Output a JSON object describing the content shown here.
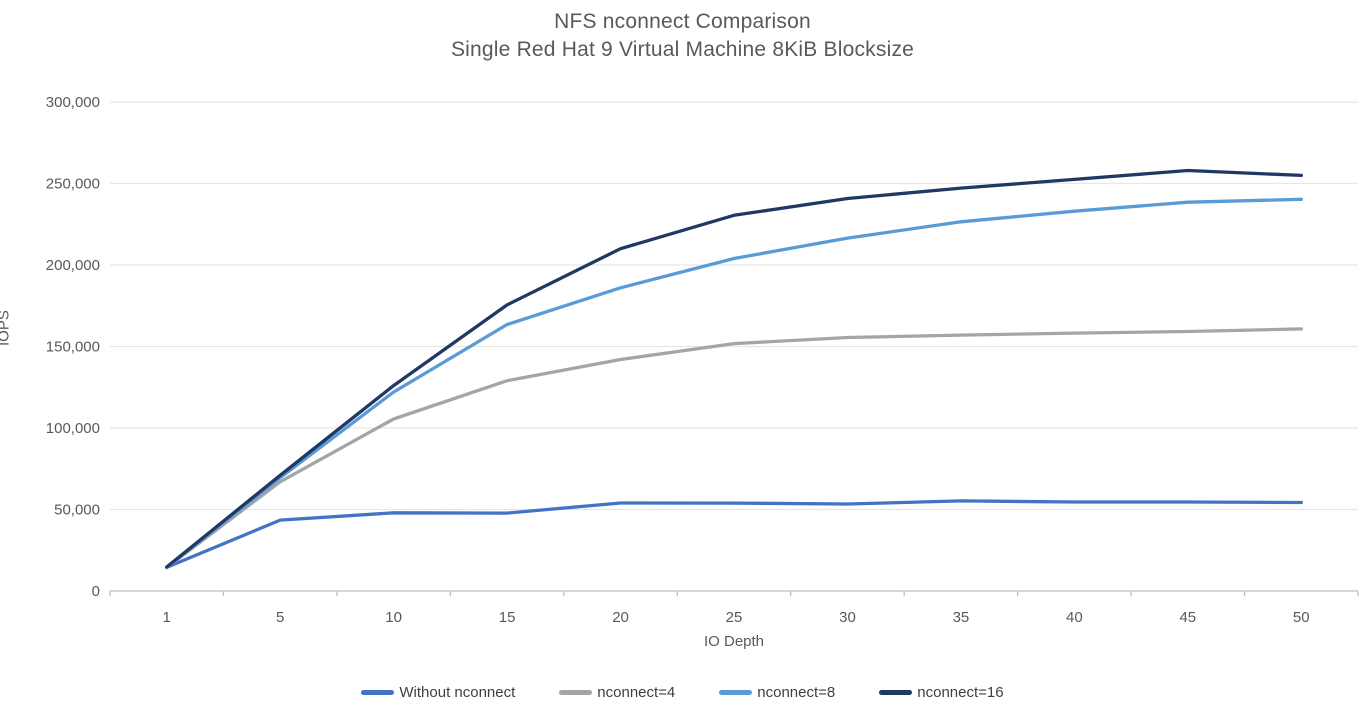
{
  "title": {
    "line1": "NFS nconnect Comparison",
    "line2": "Single Red Hat 9 Virtual Machine 8KiB Blocksize"
  },
  "chart_data": {
    "type": "line",
    "title": "NFS nconnect Comparison",
    "subtitle": "Single Red Hat 9 Virtual Machine 8KiB Blocksize",
    "xlabel": "IO Depth",
    "ylabel": "IOPS",
    "categories": [
      "1",
      "5",
      "10",
      "15",
      "20",
      "25",
      "30",
      "35",
      "40",
      "45",
      "50"
    ],
    "ylim": [
      0,
      300000
    ],
    "y_ticks": [
      {
        "value": 0,
        "label": "0"
      },
      {
        "value": 50000,
        "label": "50,000"
      },
      {
        "value": 100000,
        "label": "100,000"
      },
      {
        "value": 150000,
        "label": "150,000"
      },
      {
        "value": 200000,
        "label": "200,000"
      },
      {
        "value": 250000,
        "label": "250,000"
      },
      {
        "value": 300000,
        "label": "300,000"
      }
    ],
    "grid": true,
    "legend_position": "bottom",
    "series": [
      {
        "name": "Without nconnect",
        "color": "#4472C4",
        "values": [
          14500,
          43500,
          48000,
          47800,
          54000,
          53900,
          53400,
          55300,
          54600,
          54600,
          54300
        ]
      },
      {
        "name": "nconnect=4",
        "color": "#A5A5A5",
        "values": [
          14500,
          67000,
          105500,
          129000,
          142000,
          151800,
          155500,
          157000,
          158200,
          159200,
          160800
        ]
      },
      {
        "name": "nconnect=8",
        "color": "#5B9BD5",
        "values": [
          14500,
          69500,
          122000,
          163500,
          186000,
          204000,
          216500,
          226500,
          233000,
          238500,
          240300
        ]
      },
      {
        "name": "nconnect=16",
        "color": "#1F3864",
        "values": [
          14700,
          71000,
          126000,
          175500,
          210000,
          230500,
          240800,
          247200,
          252500,
          258000,
          255000
        ]
      }
    ]
  },
  "colors": {
    "text": "#595959",
    "gridline": "#E7E7E7",
    "axis": "#BFBFBF",
    "background": "#FFFFFF"
  }
}
